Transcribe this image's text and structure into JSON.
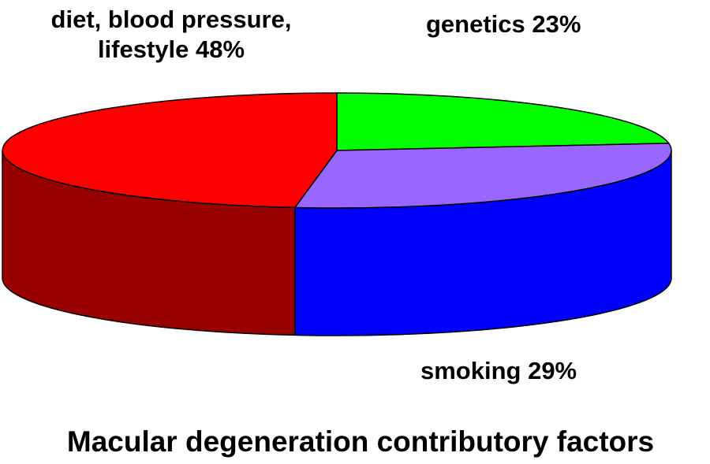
{
  "chart_data": {
    "type": "pie",
    "style": "3d",
    "title": "Macular degeneration contributory factors",
    "slices": [
      {
        "label_lines": [
          "diet, blood pressure,",
          "lifestyle 48%"
        ],
        "value": 48,
        "color": "#ff0000",
        "side_color": "#990000"
      },
      {
        "label_lines": [
          "genetics 23%"
        ],
        "value": 23,
        "color": "#00ff00",
        "side_color": "#009900"
      },
      {
        "label_lines": [
          "smoking 29%"
        ],
        "value": 29,
        "color": "#9966ff",
        "side_color": "#0000ff"
      }
    ]
  }
}
